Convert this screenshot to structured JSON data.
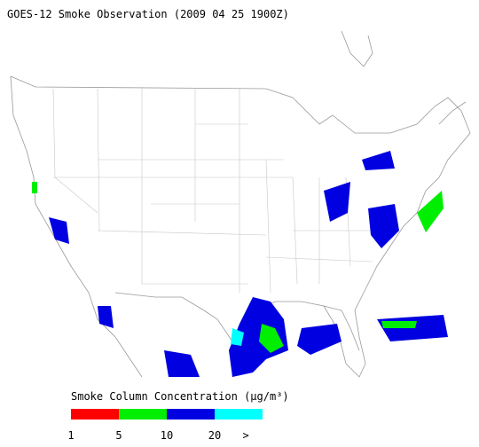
{
  "title": "GOES-12 Smoke Observation (2009 04 25  1900Z)",
  "legend": {
    "title": "Smoke Column Concentration (μg/m³)",
    "colors": [
      "#ff0000",
      "#00ee00",
      "#0000e0",
      "#00ffff"
    ],
    "labels": [
      "1",
      "5",
      "10",
      "20",
      ">"
    ]
  }
}
